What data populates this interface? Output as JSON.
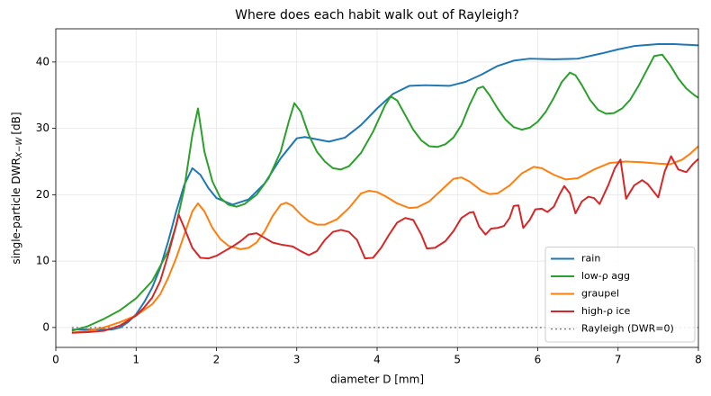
{
  "chart_data": {
    "type": "line",
    "title": "Where does each habit walk out of Rayleigh?",
    "xlabel": "diameter D [mm]",
    "ylabel": [
      "single-particle DWR",
      "X−W",
      "[dB]"
    ],
    "xlim": [
      0,
      8
    ],
    "ylim": [
      -3,
      45
    ],
    "xticks": [
      0,
      1,
      2,
      3,
      4,
      5,
      6,
      7,
      8
    ],
    "yticks": [
      0,
      10,
      20,
      30,
      40
    ],
    "grid": true,
    "legend": "lower right",
    "series": [
      {
        "name": "rain",
        "color": "#1f77b4",
        "x": [
          0.2,
          0.5,
          0.7,
          0.8,
          0.9,
          1.0,
          1.1,
          1.2,
          1.3,
          1.4,
          1.5,
          1.6,
          1.7,
          1.8,
          1.9,
          2.0,
          2.2,
          2.4,
          2.6,
          2.8,
          3.0,
          3.1,
          3.4,
          3.6,
          3.8,
          4.0,
          4.2,
          4.4,
          4.6,
          4.9,
          5.1,
          5.3,
          5.5,
          5.7,
          5.9,
          6.2,
          6.5,
          6.8,
          7.0,
          7.2,
          7.5,
          7.7,
          8.0
        ],
        "values": [
          -0.3,
          -0.3,
          -0.3,
          0,
          0.8,
          2,
          3.8,
          6,
          9,
          13,
          17.5,
          21.5,
          24,
          23,
          21,
          19.5,
          18.5,
          19.3,
          21.7,
          25.5,
          28.5,
          28.7,
          28,
          28.6,
          30.5,
          33,
          35.2,
          36.4,
          36.5,
          36.4,
          37,
          38.1,
          39.4,
          40.2,
          40.5,
          40.4,
          40.5,
          41.3,
          41.9,
          42.4,
          42.7,
          42.7,
          42.5
        ]
      },
      {
        "name": "low-ρ agg",
        "color": "#2ca02c",
        "x": [
          0.2,
          0.4,
          0.6,
          0.8,
          1.0,
          1.2,
          1.4,
          1.5,
          1.6,
          1.7,
          1.77,
          1.85,
          1.95,
          2.05,
          2.15,
          2.25,
          2.35,
          2.5,
          2.65,
          2.8,
          2.9,
          2.97,
          3.05,
          3.15,
          3.25,
          3.35,
          3.45,
          3.55,
          3.65,
          3.8,
          3.95,
          4.1,
          4.17,
          4.25,
          4.35,
          4.45,
          4.55,
          4.65,
          4.75,
          4.85,
          4.95,
          5.05,
          5.15,
          5.25,
          5.32,
          5.4,
          5.5,
          5.6,
          5.7,
          5.8,
          5.9,
          6.0,
          6.1,
          6.2,
          6.3,
          6.4,
          6.47,
          6.55,
          6.65,
          6.75,
          6.85,
          6.95,
          7.05,
          7.15,
          7.25,
          7.35,
          7.45,
          7.55,
          7.65,
          7.75,
          7.85,
          7.95,
          8.0
        ],
        "values": [
          -0.5,
          0.2,
          1.3,
          2.6,
          4.4,
          7,
          11.5,
          15.5,
          21,
          29,
          33,
          26.5,
          22,
          19.5,
          18.5,
          18.2,
          18.6,
          20,
          22.5,
          26.5,
          31,
          33.8,
          32.5,
          29,
          26.5,
          25,
          24,
          23.8,
          24.3,
          26.3,
          29.5,
          33.5,
          34.8,
          34.2,
          32,
          29.8,
          28.2,
          27.3,
          27.2,
          27.6,
          28.6,
          30.5,
          33.5,
          36,
          36.3,
          35,
          33,
          31.3,
          30.2,
          29.8,
          30.1,
          31,
          32.5,
          34.6,
          37,
          38.4,
          38,
          36.5,
          34.3,
          32.8,
          32.2,
          32.3,
          33,
          34.3,
          36.3,
          38.6,
          40.9,
          41.1,
          39.5,
          37.5,
          36,
          35,
          34.6
        ]
      },
      {
        "name": "graupel",
        "color": "#ff7f0e",
        "x": [
          0.2,
          0.4,
          0.6,
          0.8,
          1.0,
          1.2,
          1.3,
          1.4,
          1.5,
          1.6,
          1.7,
          1.77,
          1.85,
          1.95,
          2.05,
          2.15,
          2.3,
          2.4,
          2.5,
          2.6,
          2.7,
          2.8,
          2.87,
          2.95,
          3.05,
          3.15,
          3.25,
          3.35,
          3.5,
          3.65,
          3.8,
          3.9,
          4.0,
          4.1,
          4.25,
          4.4,
          4.5,
          4.65,
          4.8,
          4.95,
          5.05,
          5.15,
          5.3,
          5.4,
          5.5,
          5.65,
          5.8,
          5.95,
          6.05,
          6.2,
          6.35,
          6.5,
          6.7,
          6.9,
          7.1,
          7.3,
          7.5,
          7.65,
          7.8,
          7.9,
          8.0
        ],
        "values": [
          -0.8,
          -0.5,
          0,
          0.8,
          1.8,
          3.5,
          5,
          7.5,
          10.5,
          14,
          17.5,
          18.7,
          17.5,
          15,
          13.3,
          12.3,
          11.8,
          12,
          12.8,
          14.5,
          16.8,
          18.5,
          18.8,
          18.3,
          17,
          16,
          15.5,
          15.5,
          16.3,
          18,
          20.2,
          20.6,
          20.4,
          19.8,
          18.7,
          18,
          18.1,
          19,
          20.7,
          22.4,
          22.6,
          22,
          20.6,
          20.1,
          20.2,
          21.4,
          23.2,
          24.2,
          24,
          23,
          22.3,
          22.5,
          23.8,
          24.8,
          25,
          24.9,
          24.7,
          24.6,
          25.3,
          26.2,
          27.3
        ]
      },
      {
        "name": "high-ρ ice",
        "color": "#d62728",
        "x": [
          0.2,
          0.4,
          0.6,
          0.8,
          1.0,
          1.1,
          1.2,
          1.3,
          1.4,
          1.5,
          1.53,
          1.6,
          1.7,
          1.8,
          1.9,
          2.0,
          2.1,
          2.2,
          2.3,
          2.4,
          2.5,
          2.6,
          2.7,
          2.8,
          2.95,
          3.05,
          3.15,
          3.25,
          3.35,
          3.45,
          3.55,
          3.65,
          3.75,
          3.85,
          3.95,
          4.05,
          4.15,
          4.25,
          4.35,
          4.45,
          4.55,
          4.62,
          4.72,
          4.85,
          4.95,
          5.05,
          5.15,
          5.2,
          5.27,
          5.35,
          5.42,
          5.5,
          5.58,
          5.65,
          5.7,
          5.76,
          5.82,
          5.9,
          5.97,
          6.05,
          6.12,
          6.2,
          6.27,
          6.33,
          6.4,
          6.47,
          6.55,
          6.63,
          6.7,
          6.77,
          6.88,
          6.96,
          7.03,
          7.1,
          7.2,
          7.3,
          7.37,
          7.5,
          7.58,
          7.66,
          7.75,
          7.85,
          7.93,
          8.0
        ],
        "values": [
          -0.8,
          -0.7,
          -0.5,
          0.3,
          1.8,
          3,
          4.5,
          7,
          11,
          15.5,
          17,
          15,
          12,
          10.5,
          10.4,
          10.8,
          11.5,
          12.2,
          13,
          14,
          14.2,
          13.5,
          12.8,
          12.5,
          12.2,
          11.5,
          10.9,
          11.5,
          13.2,
          14.4,
          14.7,
          14.4,
          13.2,
          10.4,
          10.5,
          12,
          14,
          15.8,
          16.5,
          16.2,
          14,
          11.9,
          12,
          13,
          14.5,
          16.5,
          17.3,
          17.4,
          15.2,
          14,
          14.9,
          15,
          15.3,
          16.5,
          18.3,
          18.4,
          15,
          16.2,
          17.8,
          17.9,
          17.4,
          18.2,
          20,
          21.3,
          20.2,
          17.2,
          19,
          19.7,
          19.5,
          18.6,
          21.5,
          24,
          25.3,
          19.4,
          21.4,
          22.2,
          21.6,
          19.6,
          23.5,
          25.8,
          23.8,
          23.4,
          24.6,
          25.4
        ]
      },
      {
        "name": "Rayleigh (DWR=0)",
        "color": "#7f7f7f",
        "dash": "dotted",
        "x": [
          0.2,
          8
        ],
        "values": [
          0,
          0
        ]
      }
    ]
  }
}
